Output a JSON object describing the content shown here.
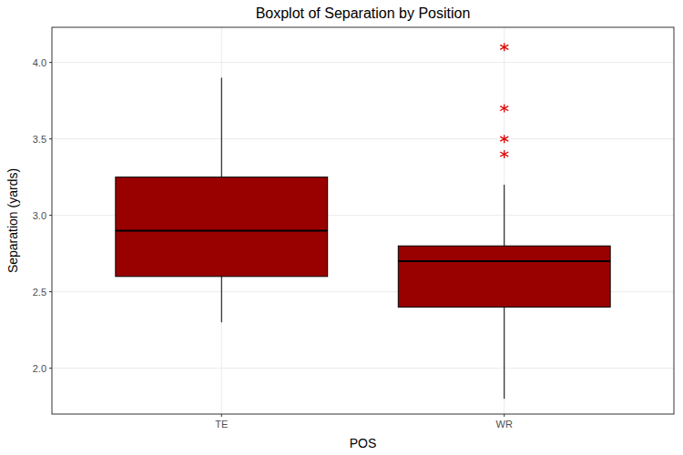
{
  "chart_data": {
    "type": "box",
    "title": "Boxplot of Separation by Position",
    "x_label": "POS",
    "y_label": "Separation (yards)",
    "categories": [
      "TE",
      "WR"
    ],
    "min": [
      2.3,
      1.8
    ],
    "q1": [
      2.6,
      2.4
    ],
    "median": [
      2.9,
      2.7
    ],
    "q3": [
      3.25,
      2.8
    ],
    "max": [
      3.9,
      3.2
    ],
    "outliers": [
      [],
      [
        3.4,
        3.5,
        3.7,
        4.1
      ]
    ],
    "color": "#990000",
    "ylim": [
      1.7,
      4.23
    ],
    "yticks": [
      {
        "value": 2,
        "label": "2.0"
      },
      2.5,
      {
        "value": 3,
        "label": "3.0"
      },
      3.5,
      {
        "value": 4,
        "label": "4.0"
      }
    ],
    "grid": true
  }
}
